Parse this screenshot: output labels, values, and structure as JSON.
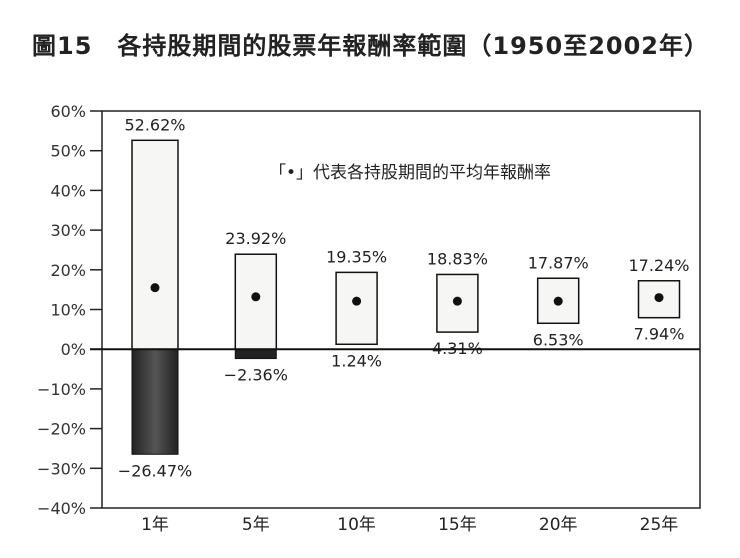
{
  "chart_data": {
    "type": "range-bar",
    "title": "圖15　各持股期間的股票年報酬率範圍（1950至2002年）",
    "annotation": "「•」代表各持股期間的平均年報酬率",
    "categories": [
      "1年",
      "5年",
      "10年",
      "15年",
      "20年",
      "25年"
    ],
    "high": [
      52.62,
      23.92,
      19.35,
      18.83,
      17.87,
      17.24
    ],
    "low": [
      -26.47,
      -2.36,
      1.24,
      4.31,
      6.53,
      7.94
    ],
    "high_labels": [
      "52.62%",
      "23.92%",
      "19.35%",
      "18.83%",
      "17.87%",
      "17.24%"
    ],
    "low_labels": [
      "-26.47%",
      "-2.36%",
      "1.24%",
      "4.31%",
      "6.53%",
      "7.94%"
    ],
    "mean": [
      15.5,
      13.2,
      12.1,
      12.1,
      12.1,
      13.0
    ],
    "yticks": [
      60,
      50,
      40,
      30,
      20,
      10,
      0,
      -10,
      -20,
      -30,
      -40
    ],
    "ytick_labels": [
      "60%",
      "50%",
      "40%",
      "30%",
      "20%",
      "10%",
      "0%",
      "-10%",
      "-20%",
      "-30%",
      "-40%"
    ],
    "ylim": [
      -40,
      60
    ],
    "xlabel": "",
    "ylabel": ""
  }
}
